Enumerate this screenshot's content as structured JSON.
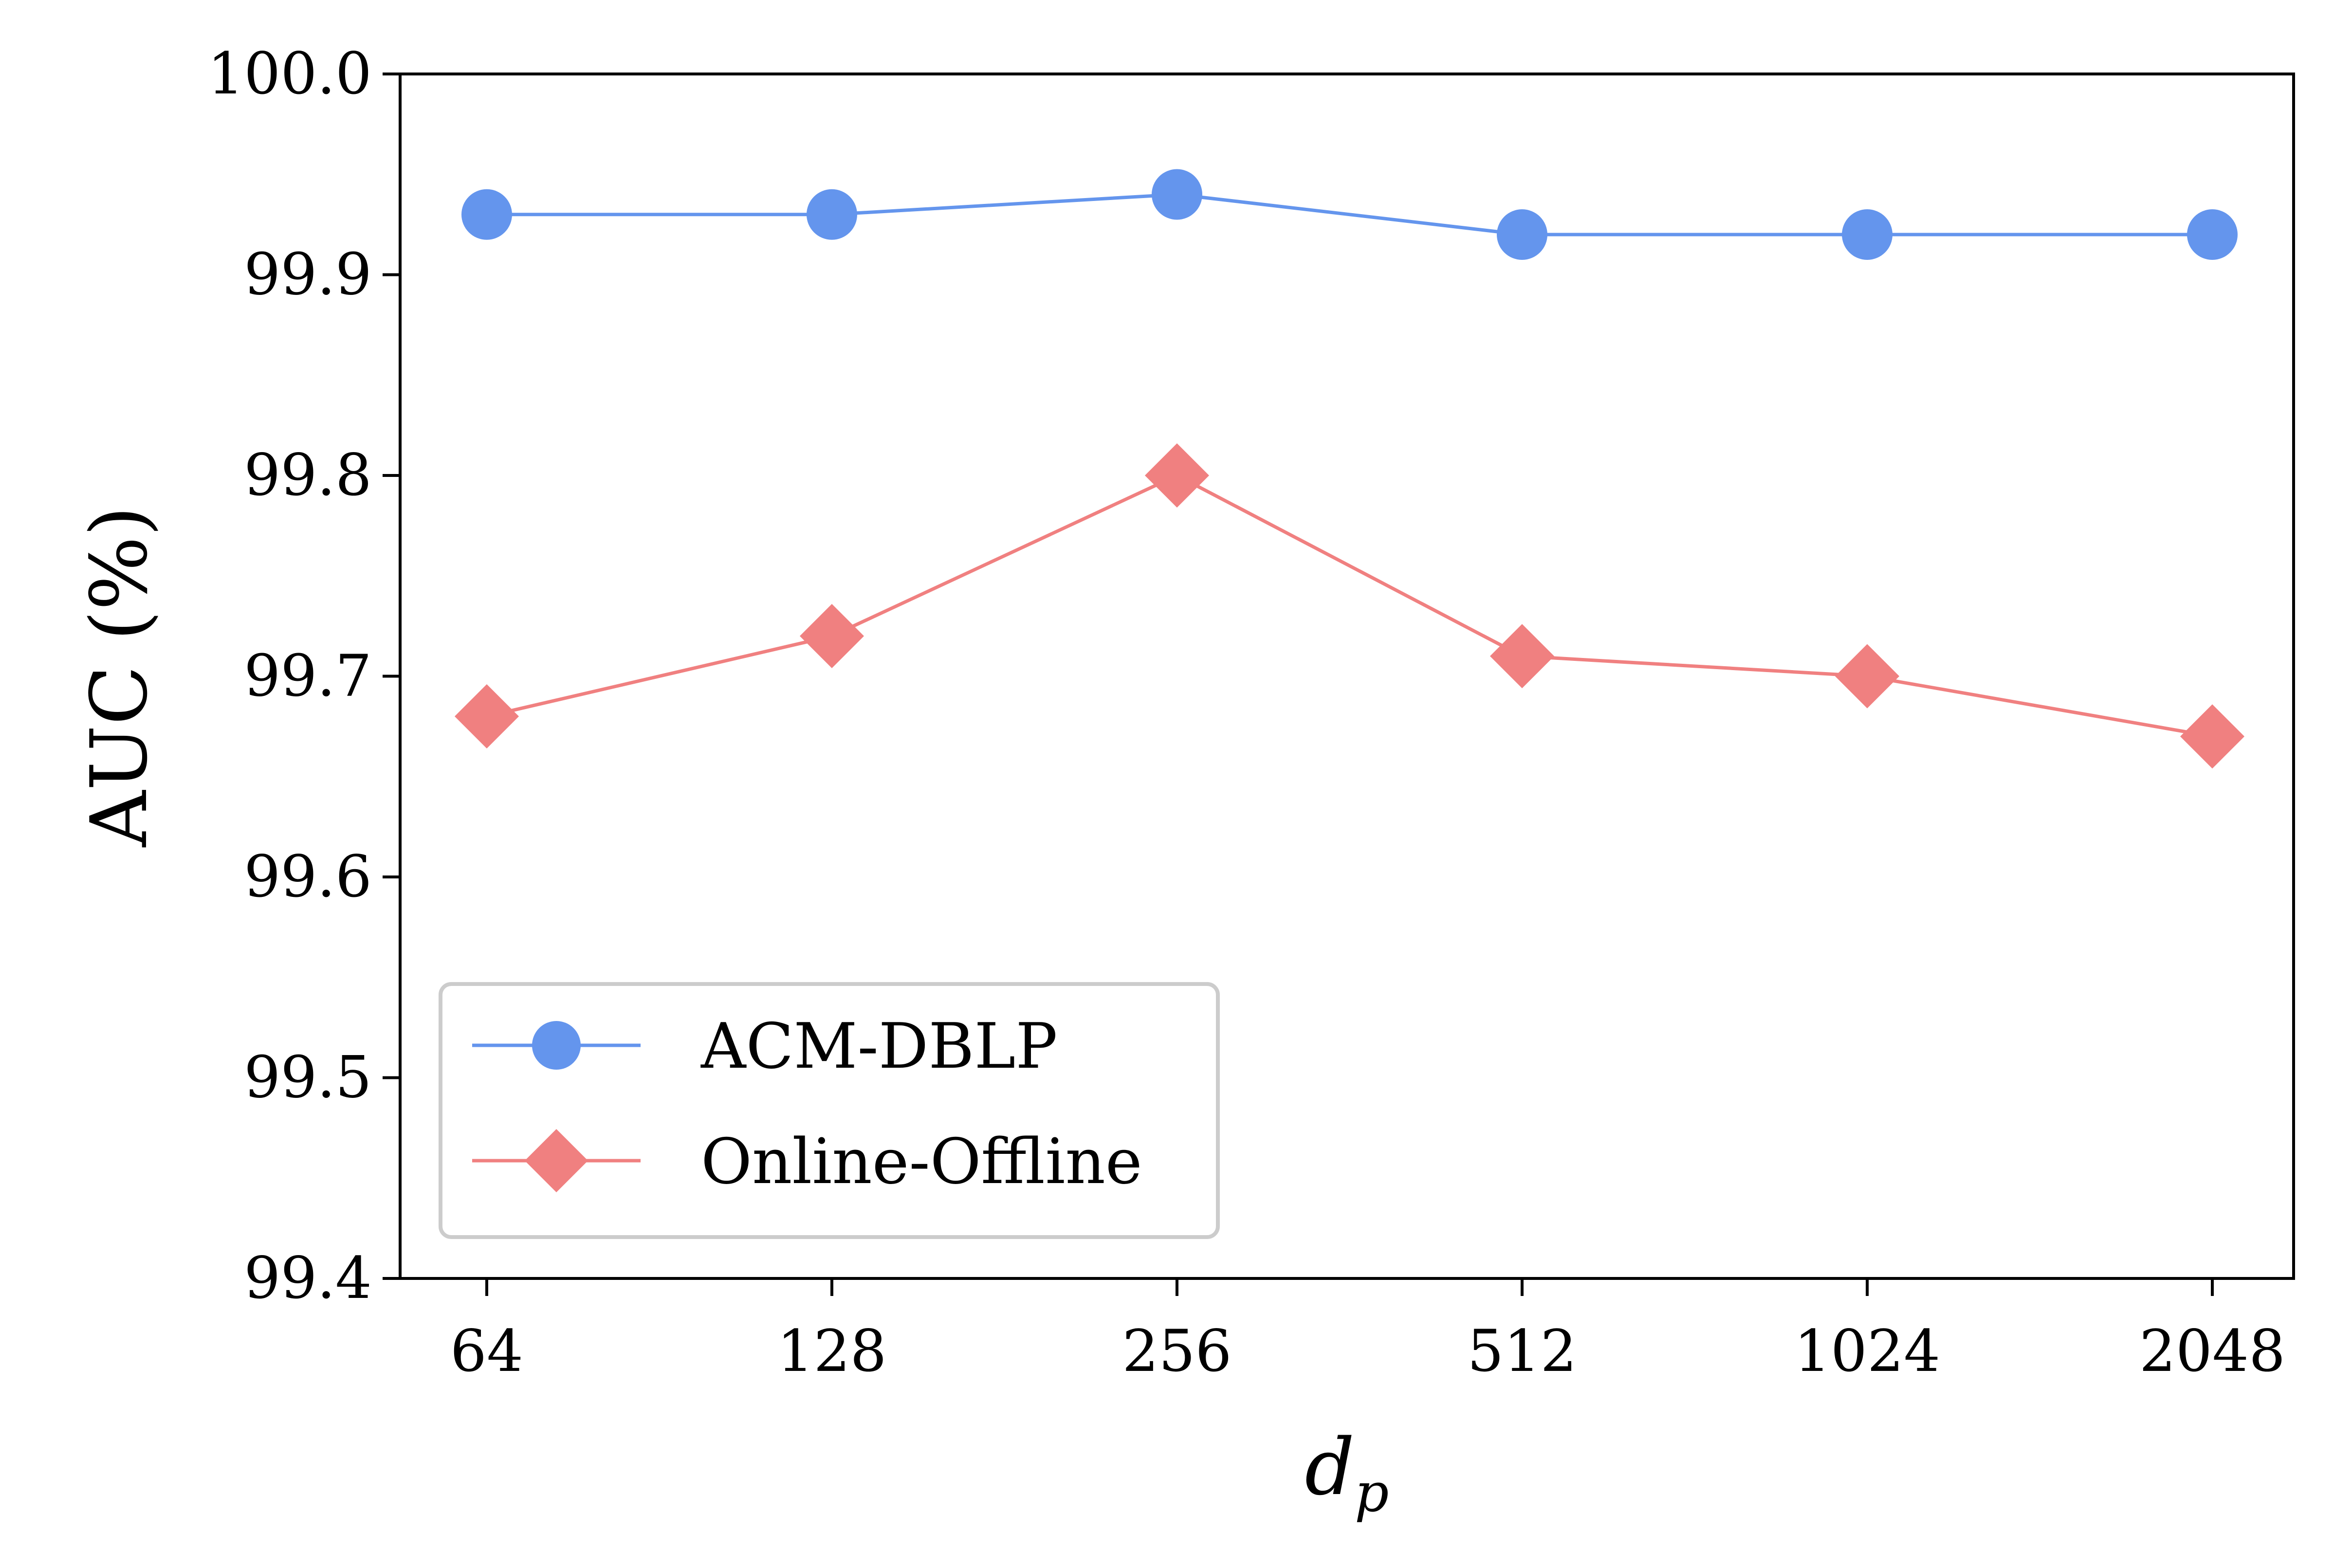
{
  "chart_data": {
    "type": "line",
    "xlabel": "d",
    "xlabel_subscript": "p",
    "ylabel": "AUC (%)",
    "categories": [
      "64",
      "128",
      "256",
      "512",
      "1024",
      "2048"
    ],
    "yticks": [
      "99.4",
      "99.5",
      "99.6",
      "99.7",
      "99.8",
      "99.9",
      "100.0"
    ],
    "ylim": [
      99.4,
      100.0
    ],
    "grid": false,
    "legend_position": "lower-left",
    "series": [
      {
        "name": "ACM-DBLP",
        "marker": "circle",
        "color": "#6495ED",
        "values": [
          99.93,
          99.93,
          99.94,
          99.92,
          99.92,
          99.92
        ]
      },
      {
        "name": "Online-Offline",
        "marker": "diamond",
        "color": "#F08080",
        "values": [
          99.68,
          99.72,
          99.8,
          99.71,
          99.7,
          99.67
        ]
      }
    ]
  }
}
